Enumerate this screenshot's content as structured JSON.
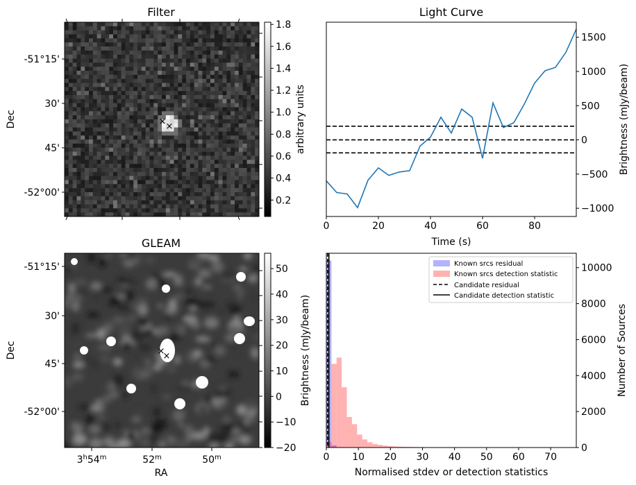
{
  "filter_panel": {
    "title": "Filter",
    "ylabel": "Dec",
    "dec_ticks": [
      "-51°15'",
      "30'",
      "45'",
      "-52°00'"
    ],
    "colorbar_label": "arbitrary units",
    "colorbar_ticks": [
      "0.2",
      "0.4",
      "0.6",
      "0.8",
      "1.0",
      "1.2",
      "1.4",
      "1.6",
      "1.8"
    ],
    "colorbar_range": [
      0.05,
      1.82
    ]
  },
  "gleam_panel": {
    "title": "GLEAM",
    "ylabel": "Dec",
    "xlabel": "RA",
    "dec_ticks": [
      "-51°15'",
      "30'",
      "45'",
      "-52°00'"
    ],
    "ra_ticks": [
      {
        "main": "3",
        "h": "h",
        "m_val": "54",
        "m": "m"
      },
      {
        "main": "52",
        "h": "",
        "m_val": "",
        "m": "m"
      },
      {
        "main": "50",
        "h": "",
        "m_val": "",
        "m": "m"
      }
    ],
    "colorbar_label": "Brightness (mJy/beam)",
    "colorbar_ticks": [
      "50",
      "40",
      "30",
      "20",
      "10",
      "0",
      "−10",
      "−20"
    ],
    "colorbar_range": [
      -20,
      56
    ]
  },
  "marker_colors": {
    "candidate": "#ff0000",
    "known": "#0000ff"
  },
  "light_curve_text": {
    "title": "Light Curve",
    "xlabel": "Time (s)",
    "ylabel": "Brightness (mJy/beam)"
  },
  "histogram_text": {
    "xlabel": "Normalised stdev or detection statistics",
    "ylabel": "Number of Sources",
    "legend": [
      "Known srcs residual",
      "Known srcs detection statistic",
      "Candidate residual",
      "Candidate detection statistic"
    ]
  },
  "chart_data": [
    {
      "type": "line",
      "x": [
        0,
        4,
        8,
        12,
        16,
        20,
        24,
        28,
        32,
        36,
        40,
        44,
        48,
        52,
        56,
        60,
        64,
        68,
        72,
        76,
        80,
        84,
        88,
        92,
        96
      ],
      "series": [
        {
          "values": [
            -600,
            -770,
            -790,
            -990,
            -590,
            -410,
            -520,
            -470,
            -450,
            -90,
            40,
            330,
            100,
            450,
            330,
            -270,
            540,
            180,
            250,
            520,
            830,
            1010,
            1060,
            1280,
            1620
          ],
          "color": "#1f77b4"
        }
      ],
      "hlines": [
        -190,
        0,
        200
      ],
      "xlim": [
        0,
        96
      ],
      "ylim": [
        -1120,
        1720
      ],
      "xticks": [
        0,
        20,
        40,
        60,
        80
      ],
      "yticks": [
        -1000,
        -500,
        0,
        500,
        1000,
        1500
      ]
    },
    {
      "type": "bar",
      "bin_width": 1.6,
      "bins_start": 0,
      "series": [
        {
          "name": "Known srcs residual",
          "color": "#0000ff",
          "alpha": 0.3,
          "values": [
            10400,
            120,
            20,
            8,
            5,
            3,
            2,
            1,
            1,
            0
          ]
        },
        {
          "name": "Known srcs detection statistic",
          "color": "#ff0000",
          "alpha": 0.3,
          "values": [
            300,
            4650,
            5000,
            3350,
            1700,
            1300,
            720,
            450,
            290,
            200,
            150,
            110,
            80,
            60,
            50,
            40,
            35,
            30,
            25,
            20,
            15,
            12,
            10,
            8,
            6,
            5,
            4,
            3,
            2,
            2,
            1,
            1,
            1,
            1,
            0,
            0,
            0,
            0,
            0,
            0,
            0,
            0,
            0,
            0,
            0,
            0,
            1
          ]
        }
      ],
      "vlines": [
        {
          "name": "Candidate residual",
          "x": 0.4,
          "style": "dashed"
        },
        {
          "name": "Candidate detection statistic",
          "x": 0.8,
          "style": "solid"
        }
      ],
      "xlim": [
        0,
        78
      ],
      "ylim": [
        0,
        10800
      ],
      "xticks": [
        0,
        10,
        20,
        30,
        40,
        50,
        60,
        70
      ],
      "yticks": [
        0,
        2000,
        4000,
        6000,
        8000,
        10000
      ]
    }
  ]
}
